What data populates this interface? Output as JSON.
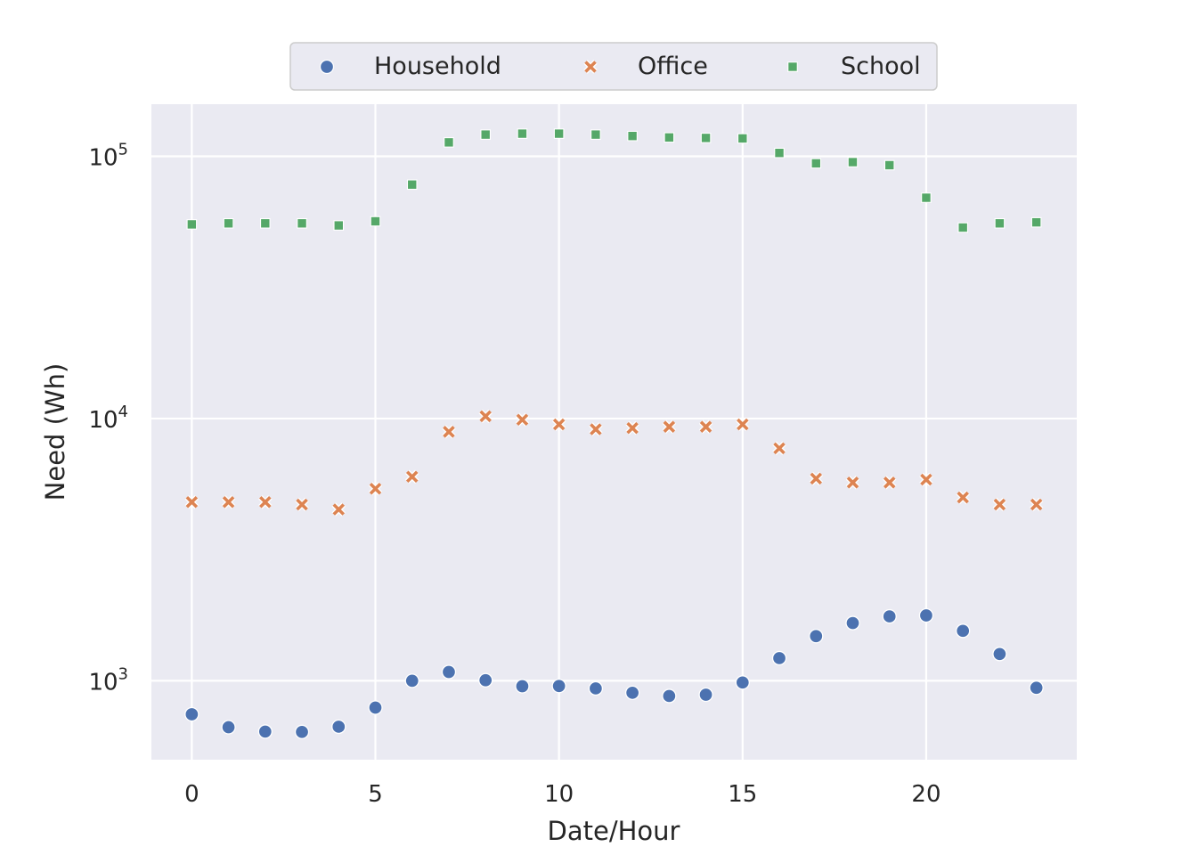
{
  "chart_data": {
    "type": "scatter",
    "xlabel": "Date/Hour",
    "ylabel": "Need (Wh)",
    "yscale": "log",
    "xlim": [
      -1.1,
      24.1
    ],
    "ylim": [
      500,
      158000
    ],
    "xticks": [
      0,
      5,
      10,
      15,
      20
    ],
    "yticks": [
      1000,
      10000,
      100000
    ],
    "ytick_labels": [
      {
        "base": "10",
        "exp": "3"
      },
      {
        "base": "10",
        "exp": "4"
      },
      {
        "base": "10",
        "exp": "5"
      }
    ],
    "grid": true,
    "legend_position": "top-center",
    "x": [
      0,
      1,
      2,
      3,
      4,
      5,
      6,
      7,
      8,
      9,
      10,
      11,
      12,
      13,
      14,
      15,
      16,
      17,
      18,
      19,
      20,
      21,
      22,
      23
    ],
    "series": [
      {
        "name": "Household",
        "marker": "circle",
        "color": "#4c72b0",
        "values": [
          745,
          665,
          640,
          638,
          668,
          790,
          1000,
          1080,
          1005,
          953,
          955,
          935,
          900,
          875,
          885,
          985,
          1220,
          1480,
          1660,
          1760,
          1775,
          1550,
          1265,
          940
        ]
      },
      {
        "name": "Office",
        "marker": "x",
        "color": "#dd8452",
        "values": [
          4800,
          4800,
          4800,
          4700,
          4500,
          5400,
          6000,
          8900,
          10200,
          9900,
          9500,
          9100,
          9200,
          9300,
          9300,
          9500,
          7700,
          5900,
          5700,
          5700,
          5850,
          5000,
          4700,
          4700
        ]
      },
      {
        "name": "School",
        "marker": "square",
        "color": "#55a868",
        "values": [
          55000,
          55500,
          55500,
          55500,
          54500,
          56500,
          78000,
          113000,
          121000,
          122000,
          122000,
          121000,
          119500,
          118000,
          117500,
          117000,
          103000,
          94000,
          95000,
          92500,
          69500,
          53500,
          55500,
          56000
        ]
      }
    ]
  }
}
